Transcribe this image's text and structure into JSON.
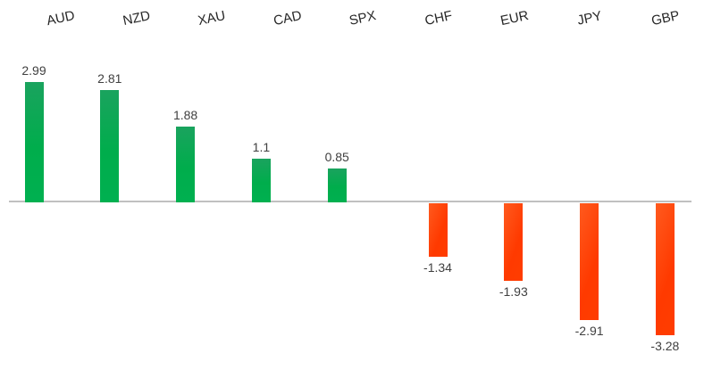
{
  "chart_data": {
    "type": "bar",
    "title": "",
    "xlabel": "",
    "ylabel": "",
    "categories": [
      "AUD",
      "NZD",
      "XAU",
      "CAD",
      "SPX",
      "CHF",
      "EUR",
      "JPY",
      "GBP"
    ],
    "values": [
      2.99,
      2.81,
      1.88,
      1.1,
      0.85,
      -1.34,
      -1.93,
      -2.91,
      -3.28
    ],
    "value_labels": [
      "2.99",
      "2.81",
      "1.88",
      "1.1",
      "0.85",
      "-1.34",
      "-1.93",
      "-2.91",
      "-3.28"
    ],
    "ylim": [
      -3.6,
      3.2
    ],
    "baseline": 0,
    "grid": false,
    "legend": false,
    "category_label_position": "top",
    "category_label_rotation_deg": -12,
    "colors": {
      "positive_bar": "#00AE50",
      "negative_bar": "#FF3D00",
      "axis_line": "#C0C0C0",
      "value_label": "#404040",
      "category_label": "#262626",
      "background": "#FFFFFF"
    }
  }
}
